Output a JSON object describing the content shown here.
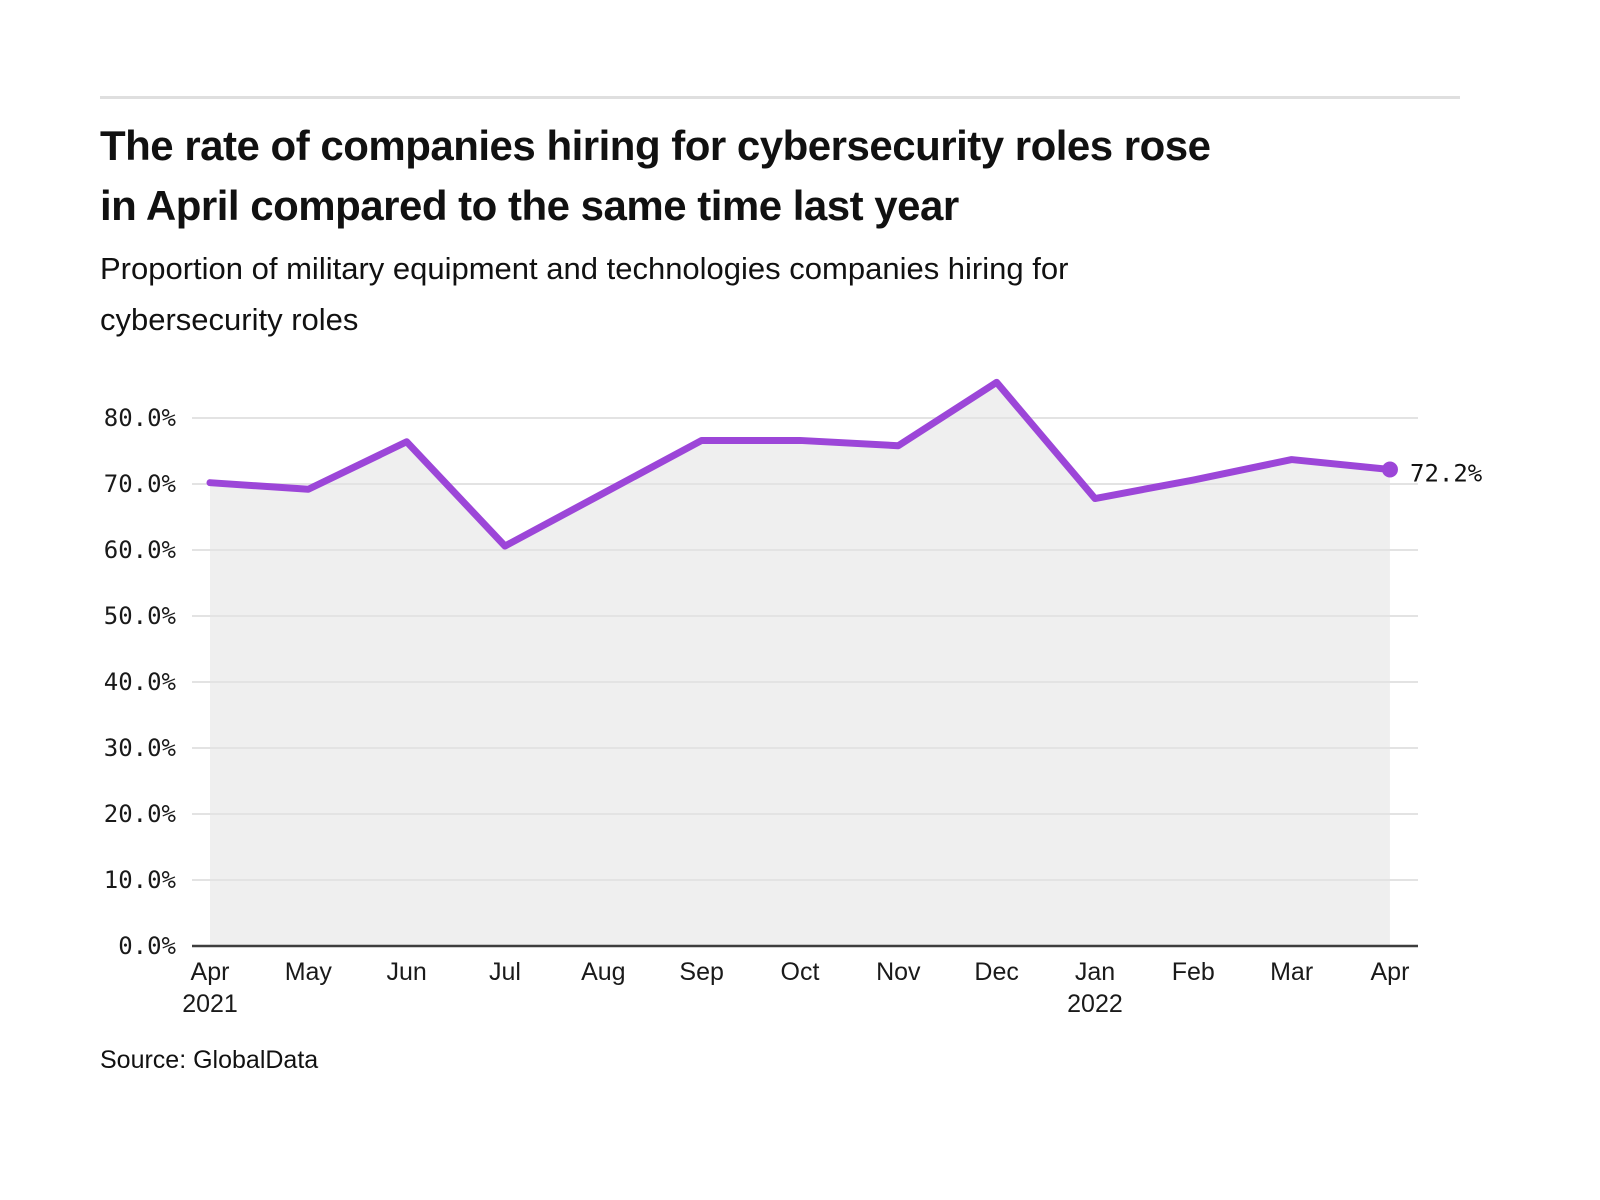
{
  "header": {
    "title_lines": [
      "The rate of companies hiring for cybersecurity roles rose",
      "in April compared to the same time last year"
    ],
    "subtitle_lines": [
      "Proportion of military equipment and technologies companies hiring for",
      "cybersecurity roles"
    ]
  },
  "footer": {
    "source": "Source: GlobalData"
  },
  "chart_data": {
    "type": "area",
    "title": "The rate of companies hiring for cybersecurity roles rose in April compared to the same time last year",
    "subtitle": "Proportion of military equipment and technologies companies hiring for cybersecurity roles",
    "categories": [
      "Apr",
      "May",
      "Jun",
      "Jul",
      "Aug",
      "Sep",
      "Oct",
      "Nov",
      "Dec",
      "Jan",
      "Feb",
      "Mar",
      "Apr"
    ],
    "year_labels": [
      {
        "index": 0,
        "year": "2021"
      },
      {
        "index": 9,
        "year": "2022"
      }
    ],
    "values": [
      70.2,
      69.2,
      76.4,
      60.6,
      68.6,
      76.6,
      76.6,
      75.8,
      85.4,
      67.8,
      70.6,
      73.7,
      72.2
    ],
    "unit": "%",
    "ylim": [
      0,
      80
    ],
    "ytick_step": 10,
    "yticks": [
      "0.0%",
      "10.0%",
      "20.0%",
      "30.0%",
      "40.0%",
      "50.0%",
      "60.0%",
      "70.0%",
      "80.0%"
    ],
    "last_point_label": "72.2%",
    "grid": true,
    "legend": "none",
    "colors": {
      "line": "#9c46d8",
      "marker": "#9c46d8",
      "area_fill": "#efefef",
      "grid": "#e3e3e3",
      "axis": "#3d3d3d",
      "tick_text": "#1a1a1a",
      "annotation_text": "#111111"
    }
  }
}
